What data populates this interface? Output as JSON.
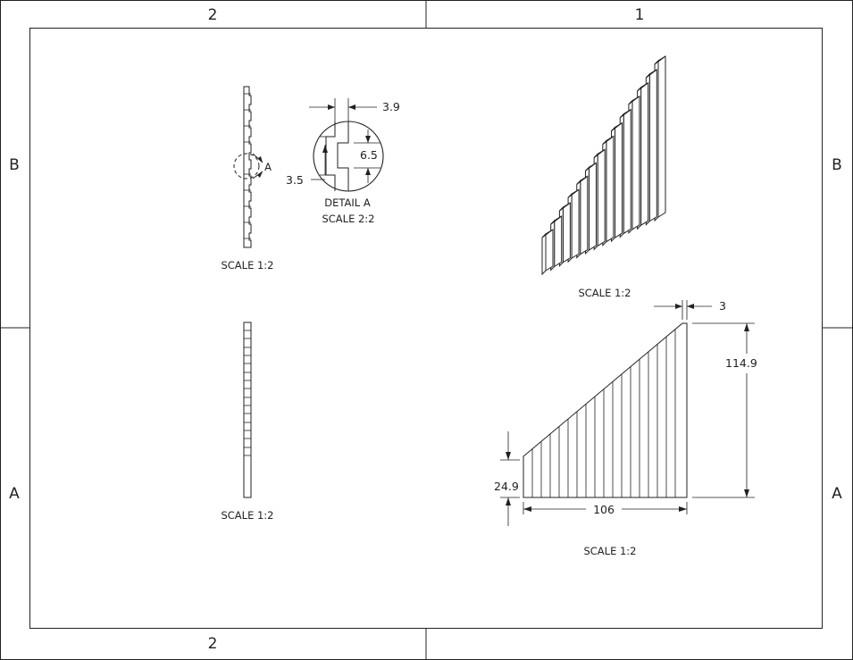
{
  "sheet": {
    "zones_top": [
      "2",
      "1"
    ],
    "zones_bottom": [
      "2"
    ],
    "zones_left": [
      "B",
      "A"
    ],
    "zones_right": [
      "B",
      "A"
    ]
  },
  "views": {
    "top_left_scale": "SCALE 1:2",
    "bottom_left_scale": "SCALE 1:2",
    "isometric_scale": "SCALE 1:2",
    "front_scale": "SCALE 1:2",
    "detail_callout": "A"
  },
  "detail": {
    "title": "DETAIL A",
    "scale": "SCALE 2:2",
    "dim_width": "3.9",
    "dim_height": "6.5",
    "dim_gap": "3.5"
  },
  "front_view": {
    "dim_top": "3",
    "dim_height": "114.9",
    "dim_left": "24.9",
    "dim_width": "106"
  }
}
